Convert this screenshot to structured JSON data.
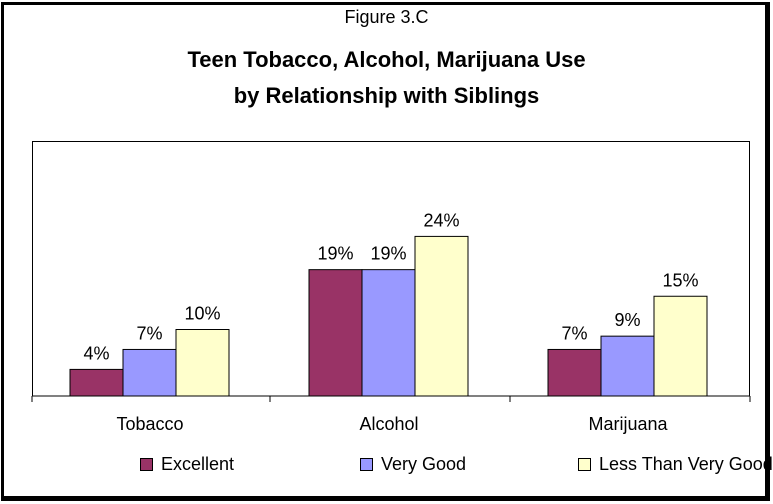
{
  "figure_label": "Figure 3.C",
  "title_line1": "Teen Tobacco, Alcohol, Marijuana Use",
  "title_line2": "by Relationship with Siblings",
  "chart_data": {
    "type": "bar",
    "title": "Teen Tobacco, Alcohol, Marijuana Use by Relationship with Siblings",
    "categories": [
      "Tobacco",
      "Alcohol",
      "Marijuana"
    ],
    "series": [
      {
        "name": "Excellent",
        "values": [
          4,
          19,
          7
        ],
        "labels": [
          "4%",
          "19%",
          "7%"
        ],
        "color": "#993366"
      },
      {
        "name": "Very Good",
        "values": [
          7,
          19,
          9
        ],
        "labels": [
          "7%",
          "19%",
          "9%"
        ],
        "color": "#9999ff"
      },
      {
        "name": "Less Than Very Good",
        "values": [
          10,
          24,
          15
        ],
        "labels": [
          "10%",
          "24%",
          "15%"
        ],
        "color": "#ffffcc"
      }
    ],
    "ylim": [
      0,
      30
    ],
    "grid": false,
    "legend_position": "bottom"
  }
}
